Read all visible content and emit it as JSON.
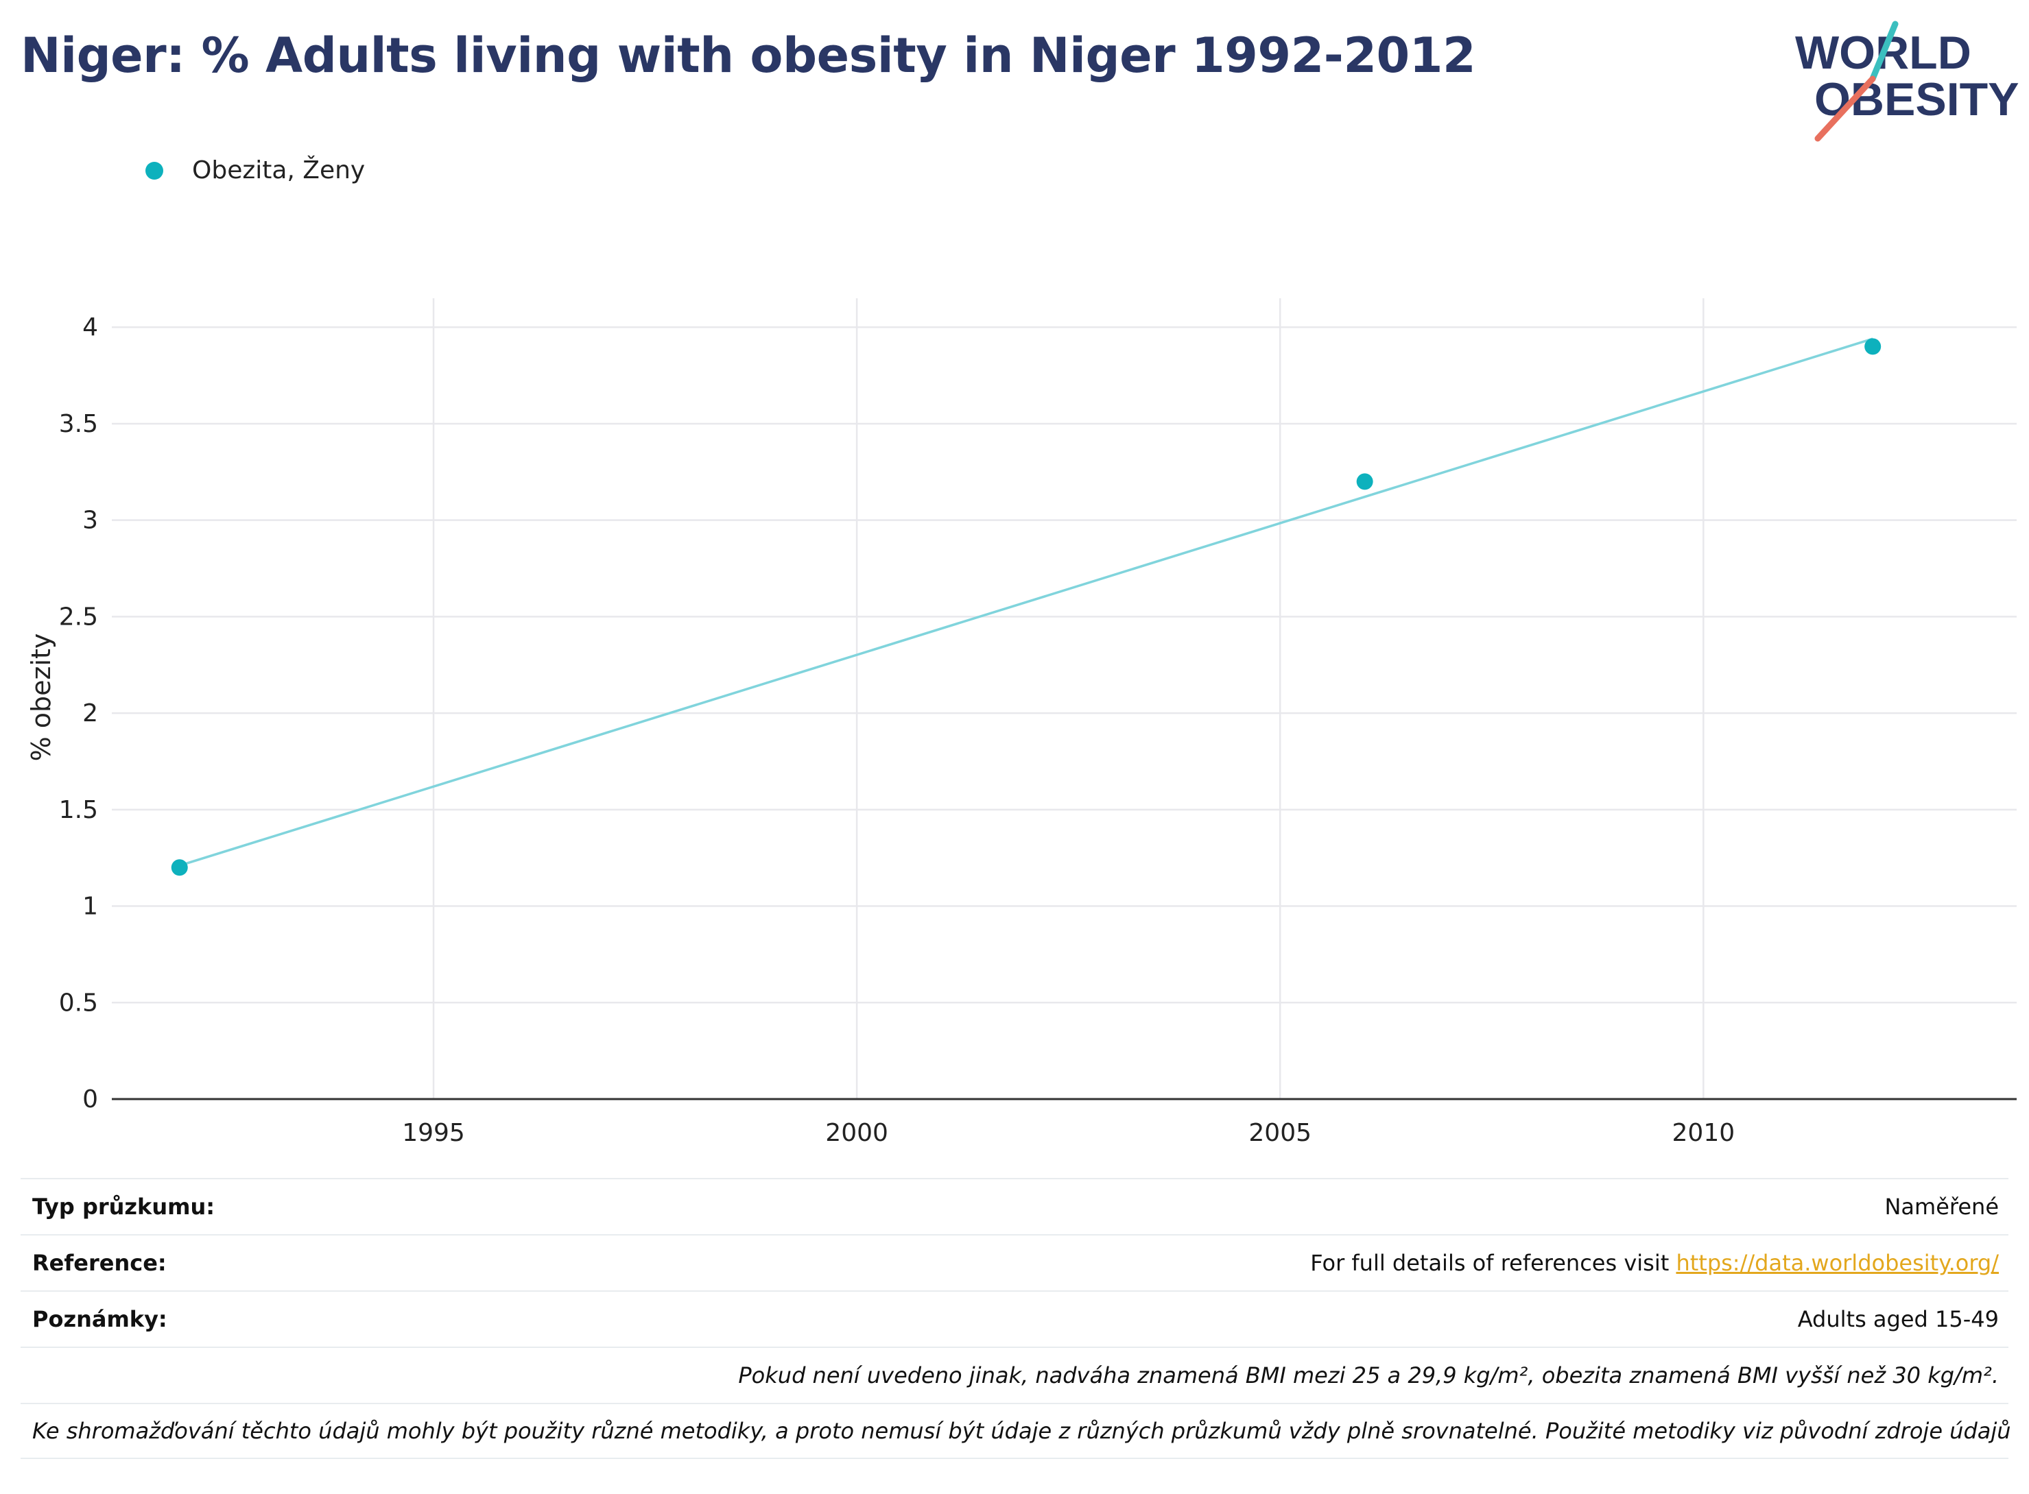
{
  "header": {
    "title": "Niger: % Adults living with obesity in Niger 1992-2012"
  },
  "logo": {
    "line1": "WORLD",
    "line2": "OBESITY",
    "colors": {
      "text": "#2a3765",
      "slash_teal": "#3bbfbf",
      "slash_coral": "#e8705e"
    }
  },
  "colors": {
    "series": "#0db1bd",
    "trendline": "#80d4dc",
    "grid": "#e8e8ec",
    "axis": "#333333",
    "title": "#2a3765",
    "link": "#e3a71d"
  },
  "chart_data": {
    "type": "scatter",
    "title": "Niger: % Adults living with obesity in Niger 1992-2012",
    "xlabel": "",
    "ylabel": "% obezity",
    "xlim": [
      1991.2,
      2013.7
    ],
    "ylim": [
      0,
      4.15
    ],
    "x_ticks": [
      1995,
      2000,
      2005,
      2010
    ],
    "y_ticks": [
      0,
      0.5,
      1,
      1.5,
      2,
      2.5,
      3,
      3.5,
      4
    ],
    "y_tick_labels": [
      "0",
      "0.5",
      "1",
      "1.5",
      "2",
      "2.5",
      "3",
      "3.5",
      "4"
    ],
    "grid": true,
    "legend_position": "top-left",
    "series": [
      {
        "name": "Obezita, Ženy",
        "x": [
          1992,
          2006,
          2012
        ],
        "y": [
          1.2,
          3.2,
          3.9
        ]
      }
    ],
    "trendline": {
      "x": [
        1992,
        2012
      ],
      "y": [
        1.21,
        3.94
      ]
    }
  },
  "info": {
    "rows": [
      {
        "label": "Typ průzkumu:",
        "value": "Naměřené"
      },
      {
        "label": "Reference:",
        "value_prefix": "For full details of references visit ",
        "link": "https://data.worldobesity.org/"
      },
      {
        "label": "Poznámky:",
        "value": "Adults aged 15-49"
      }
    ],
    "notes": [
      "Pokud není uvedeno jinak, nadváha znamená BMI mezi 25 a 29,9 kg/m², obezita znamená BMI vyšší než 30 kg/m².",
      "Ke shromažďování těchto údajů mohly být použity různé metodiky, a proto nemusí být údaje z různých průzkumů vždy plně srovnatelné. Použité metodiky viz původní zdroje údajů"
    ]
  }
}
